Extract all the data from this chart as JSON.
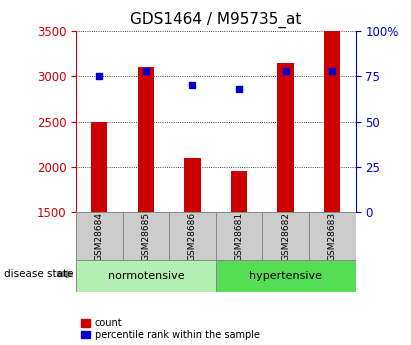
{
  "title": "GDS1464 / M95735_at",
  "samples": [
    "GSM28684",
    "GSM28685",
    "GSM28686",
    "GSM28681",
    "GSM28682",
    "GSM28683"
  ],
  "bar_values": [
    2500,
    3100,
    2100,
    1960,
    3150,
    3500
  ],
  "percentile_values": [
    75,
    78,
    70,
    68,
    78,
    78
  ],
  "bar_color": "#cc0000",
  "percentile_color": "#0000cc",
  "ylim_left": [
    1500,
    3500
  ],
  "ylim_right": [
    0,
    100
  ],
  "yticks_left": [
    1500,
    2000,
    2500,
    3000,
    3500
  ],
  "yticks_right": [
    0,
    25,
    50,
    75,
    100
  ],
  "ytick_labels_right": [
    "0",
    "25",
    "50",
    "75",
    "100%"
  ],
  "groups": [
    {
      "label": "normotensive",
      "indices": [
        0,
        1,
        2
      ],
      "color": "#b2f0b2"
    },
    {
      "label": "hypertensive",
      "indices": [
        3,
        4,
        5
      ],
      "color": "#55dd55"
    }
  ],
  "group_label": "disease state",
  "legend_count_label": "count",
  "legend_pct_label": "percentile rank within the sample",
  "background_color": "#ffffff",
  "tick_box_color": "#cccccc",
  "title_fontsize": 11,
  "tick_fontsize": 8.5,
  "bar_width": 0.35
}
